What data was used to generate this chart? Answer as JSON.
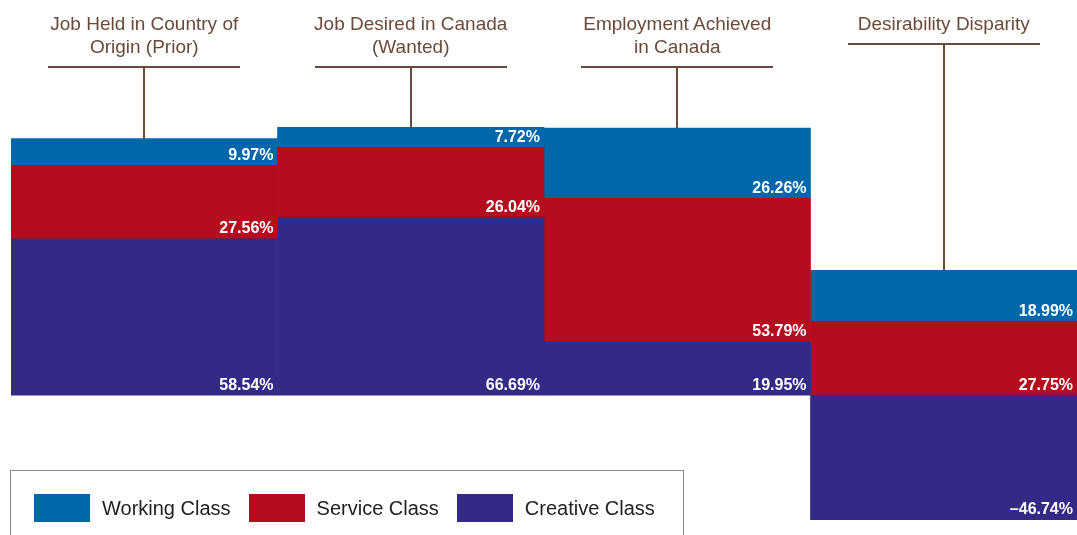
{
  "chart_data": {
    "type": "bar",
    "stacked": true,
    "tick_labels": "x",
    "data_labels": true,
    "legend": "bottom left",
    "categories": [
      "Job Held in Country of Origin (Prior)",
      "Job Desired in Canada (Wanted)",
      "Employment Achieved in Canada",
      "Desirability Disparity"
    ],
    "series": [
      {
        "name": "Creative Class",
        "color": "#332a86",
        "values": [
          58.54,
          66.69,
          19.95,
          -46.74
        ],
        "value_labels": [
          "58.54%",
          "66.69%",
          "19.95%",
          "–46.74%"
        ]
      },
      {
        "name": "Service Class",
        "color": "#b30d1e",
        "values": [
          27.56,
          26.04,
          53.79,
          27.75
        ],
        "value_labels": [
          "27.56%",
          "26.04%",
          "53.79%",
          "27.75%"
        ]
      },
      {
        "name": "Working Class",
        "color": "#0068a8",
        "values": [
          9.97,
          7.72,
          26.26,
          18.99
        ],
        "value_labels": [
          "9.97%",
          "7.72%",
          "26.26%",
          "18.99%"
        ]
      }
    ]
  }
}
